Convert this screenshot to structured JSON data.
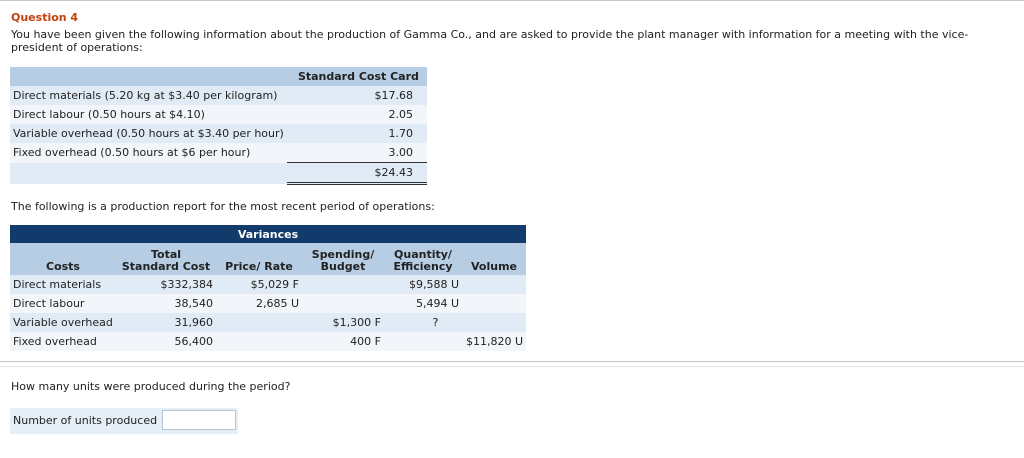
{
  "question": {
    "title": "Question 4",
    "intro": "You have been given the following information about the production of Gamma Co., and are asked to provide the plant manager with information for a meeting with the vice-president of operations:"
  },
  "standard_cost_card": {
    "header": "Standard Cost Card",
    "rows": [
      {
        "label": "Direct materials (5.20 kg at $3.40 per kilogram)",
        "amount": "$17.68"
      },
      {
        "label": "Direct labour (0.50 hours at $4.10)",
        "amount": "2.05"
      },
      {
        "label": "Variable overhead (0.50 hours at $3.40 per hour)",
        "amount": "1.70"
      },
      {
        "label": "Fixed overhead (0.50 hours at $6 per hour)",
        "amount": "3.00"
      }
    ],
    "total": "$24.43"
  },
  "report_intro": "The following is a production report for the most recent period of operations:",
  "production_report": {
    "variances_header": "Variances",
    "columns": {
      "costs": "Costs",
      "total_line1": "Total",
      "total_line2": "Standard Cost",
      "price_rate": "Price/ Rate",
      "spending_line1": "Spending/",
      "spending_line2": "Budget",
      "quantity_line1": "Quantity/",
      "quantity_line2": "Efficiency",
      "volume": "Volume"
    },
    "rows": [
      {
        "cost": "Direct materials",
        "total": "$332,384",
        "price": "$5,029 F",
        "spending": "",
        "quantity": "$9,588 U",
        "volume": ""
      },
      {
        "cost": "Direct labour",
        "total": "38,540",
        "price": "2,685 U",
        "spending": "",
        "quantity": "5,494 U",
        "volume": ""
      },
      {
        "cost": "Variable overhead",
        "total": "31,960",
        "price": "",
        "spending": "$1,300 F",
        "quantity": "?",
        "volume": ""
      },
      {
        "cost": "Fixed overhead",
        "total": "56,400",
        "price": "",
        "spending": "400 F",
        "quantity": "",
        "volume": "$11,820 U"
      }
    ]
  },
  "prompt": "How many units were produced during the period?",
  "answer": {
    "label": "Number of units produced",
    "value": ""
  }
}
